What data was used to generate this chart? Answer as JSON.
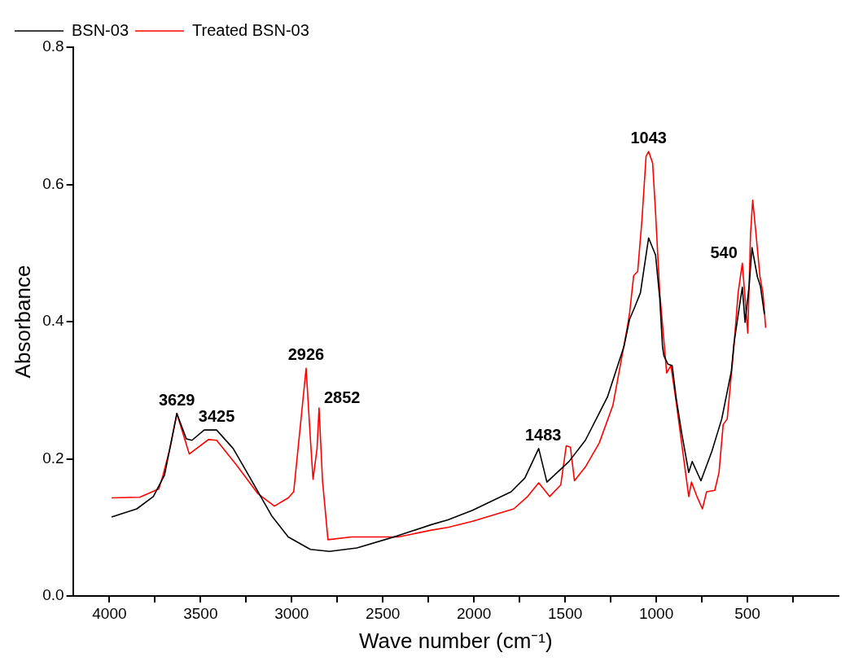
{
  "chart_data": {
    "type": "line",
    "xlabel": "Wave number (cm⁻¹)",
    "ylabel": "Absorbance",
    "xlim": [
      4200,
      0
    ],
    "ylim": [
      0,
      0.8
    ],
    "xticks": [
      4000,
      {
        "value": 3750,
        "label": null
      },
      3500,
      {
        "value": 3250,
        "label": null
      },
      3000,
      {
        "value": 2750,
        "label": null
      },
      2500,
      {
        "value": 2250,
        "label": null
      },
      2000,
      {
        "value": 1750,
        "label": null
      },
      1500,
      {
        "value": 1250,
        "label": null
      },
      1000,
      {
        "value": 750,
        "label": null
      },
      500,
      {
        "value": 250,
        "label": null
      }
    ],
    "yticks": [
      {
        "value": 0,
        "label": "0.0"
      },
      0.2,
      0.4,
      0.6,
      0.8
    ],
    "grid": false,
    "legend": "top left",
    "marker": "none",
    "line_style": "solid",
    "series": [
      {
        "name": "BSN-03",
        "color": "#000000",
        "x": [
          3988,
          3850,
          3759,
          3698,
          3630,
          3578,
          3547,
          3480,
          3412,
          3321,
          3245,
          3185,
          3110,
          3019,
          2898,
          2793,
          2642,
          2415,
          2234,
          2143,
          2008,
          1796,
          1721,
          1645,
          1600,
          1479,
          1389,
          1268,
          1177,
          1147,
          1117,
          1087,
          1042,
          1004,
          981,
          966,
          958,
          936,
          913,
          891,
          861,
          822,
          803,
          755,
          695,
          641,
          588,
          574,
          544,
          528,
          513,
          490,
          475,
          445,
          429,
          407
        ],
        "values": [
          0.115,
          0.127,
          0.145,
          0.176,
          0.266,
          0.229,
          0.227,
          0.242,
          0.242,
          0.215,
          0.18,
          0.152,
          0.117,
          0.086,
          0.068,
          0.065,
          0.07,
          0.088,
          0.104,
          0.111,
          0.125,
          0.152,
          0.172,
          0.215,
          0.166,
          0.196,
          0.227,
          0.29,
          0.364,
          0.403,
          0.422,
          0.442,
          0.522,
          0.497,
          0.434,
          0.364,
          0.35,
          0.338,
          0.336,
          0.289,
          0.238,
          0.18,
          0.196,
          0.168,
          0.211,
          0.258,
          0.328,
          0.368,
          0.422,
          0.45,
          0.399,
          0.454,
          0.508,
          0.465,
          0.452,
          0.411
        ]
      },
      {
        "name": "Treated BSN-03",
        "color": "#ff0000",
        "x": [
          3988,
          3834,
          3729,
          3706,
          3668,
          3630,
          3562,
          3457,
          3412,
          3306,
          3185,
          3095,
          3019,
          2989,
          2959,
          2921,
          2898,
          2883,
          2861,
          2850,
          2831,
          2801,
          2672,
          2415,
          2234,
          2143,
          2008,
          1782,
          1706,
          1645,
          1585,
          1524,
          1494,
          1471,
          1449,
          1389,
          1313,
          1238,
          1162,
          1147,
          1124,
          1102,
          1079,
          1056,
          1042,
          1020,
          1004,
          981,
          958,
          943,
          920,
          905,
          891,
          851,
          822,
          807,
          777,
          747,
          724,
          679,
          656,
          633,
          611,
          574,
          551,
          528,
          513,
          498,
          483,
          471,
          453,
          431,
          415,
          400
        ],
        "values": [
          0.143,
          0.144,
          0.156,
          0.176,
          0.215,
          0.266,
          0.207,
          0.228,
          0.227,
          0.192,
          0.149,
          0.131,
          0.143,
          0.152,
          0.231,
          0.332,
          0.231,
          0.17,
          0.215,
          0.274,
          0.168,
          0.082,
          0.086,
          0.086,
          0.096,
          0.1,
          0.109,
          0.127,
          0.145,
          0.165,
          0.145,
          0.162,
          0.219,
          0.217,
          0.168,
          0.188,
          0.223,
          0.278,
          0.387,
          0.411,
          0.467,
          0.473,
          0.547,
          0.641,
          0.648,
          0.631,
          0.559,
          0.442,
          0.371,
          0.325,
          0.336,
          0.309,
          0.283,
          0.203,
          0.145,
          0.166,
          0.145,
          0.127,
          0.152,
          0.154,
          0.18,
          0.25,
          0.258,
          0.364,
          0.442,
          0.485,
          0.434,
          0.383,
          0.528,
          0.577,
          0.528,
          0.465,
          0.442,
          0.391
        ]
      }
    ],
    "annotations": [
      {
        "text": "3629",
        "x": 3630,
        "y": 0.266
      },
      {
        "text": "3425",
        "x": 3412,
        "y": 0.242
      },
      {
        "text": "2926",
        "x": 2921,
        "y": 0.332
      },
      {
        "text": "2852",
        "x": 2850,
        "y": 0.274
      },
      {
        "text": "1483",
        "x": 1494,
        "y": 0.219
      },
      {
        "text": "1043",
        "x": 1042,
        "y": 0.648
      },
      {
        "text": "540",
        "x": 528,
        "y": 0.485
      }
    ]
  }
}
